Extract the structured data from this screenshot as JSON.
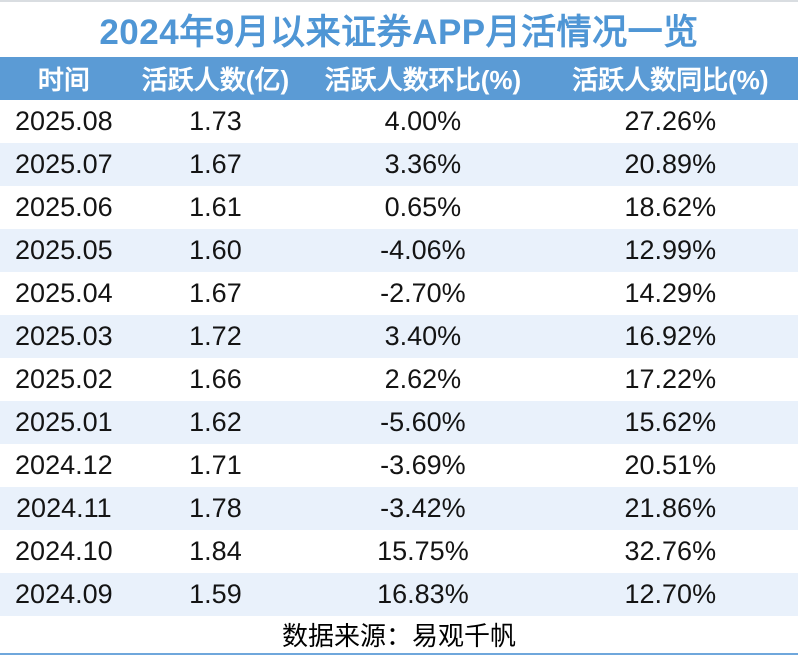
{
  "page": {
    "title": "2024年9月以来证券APP月活情况一览",
    "source_note": "数据来源：易观千帆"
  },
  "colors": {
    "title_text": "#4f96d5",
    "header_bg": "#5b9bd5",
    "header_text": "#ffffff",
    "row_alt_bg": "#e9f1fb",
    "body_text": "#141414",
    "accent_line": "#6fa7dc"
  },
  "table": {
    "headers": [
      "时间",
      "活跃人数(亿)",
      "活跃人数环比(%)",
      "活跃人数同比(%)"
    ],
    "rows": [
      {
        "date": "2025.08",
        "mau": "1.73",
        "mom": "4.00%",
        "yoy": "27.26%"
      },
      {
        "date": "2025.07",
        "mau": "1.67",
        "mom": "3.36%",
        "yoy": "20.89%"
      },
      {
        "date": "2025.06",
        "mau": "1.61",
        "mom": "0.65%",
        "yoy": "18.62%"
      },
      {
        "date": "2025.05",
        "mau": "1.60",
        "mom": "-4.06%",
        "yoy": "12.99%"
      },
      {
        "date": "2025.04",
        "mau": "1.67",
        "mom": "-2.70%",
        "yoy": "14.29%"
      },
      {
        "date": "2025.03",
        "mau": "1.72",
        "mom": "3.40%",
        "yoy": "16.92%"
      },
      {
        "date": "2025.02",
        "mau": "1.66",
        "mom": "2.62%",
        "yoy": "17.22%"
      },
      {
        "date": "2025.01",
        "mau": "1.62",
        "mom": "-5.60%",
        "yoy": "15.62%"
      },
      {
        "date": "2024.12",
        "mau": "1.71",
        "mom": "-3.69%",
        "yoy": "20.51%"
      },
      {
        "date": "2024.11",
        "mau": "1.78",
        "mom": "-3.42%",
        "yoy": "21.86%"
      },
      {
        "date": "2024.10",
        "mau": "1.84",
        "mom": "15.75%",
        "yoy": "32.76%"
      },
      {
        "date": "2024.09",
        "mau": "1.59",
        "mom": "16.83%",
        "yoy": "12.70%"
      }
    ]
  },
  "chart_data": {
    "type": "table",
    "title": "2024年9月以来证券APP月活情况一览",
    "columns": [
      "时间",
      "活跃人数(亿)",
      "活跃人数环比(%)",
      "活跃人数同比(%)"
    ],
    "rows": [
      [
        "2025.08",
        1.73,
        4.0,
        27.26
      ],
      [
        "2025.07",
        1.67,
        3.36,
        20.89
      ],
      [
        "2025.06",
        1.61,
        0.65,
        18.62
      ],
      [
        "2025.05",
        1.6,
        -4.06,
        12.99
      ],
      [
        "2025.04",
        1.67,
        -2.7,
        14.29
      ],
      [
        "2025.03",
        1.72,
        3.4,
        16.92
      ],
      [
        "2025.02",
        1.66,
        2.62,
        17.22
      ],
      [
        "2025.01",
        1.62,
        -5.6,
        15.62
      ],
      [
        "2024.12",
        1.71,
        -3.69,
        20.51
      ],
      [
        "2024.11",
        1.78,
        -3.42,
        21.86
      ],
      [
        "2024.10",
        1.84,
        15.75,
        32.76
      ],
      [
        "2024.09",
        1.59,
        16.83,
        12.7
      ]
    ],
    "units": {
      "活跃人数": "亿",
      "环比": "%",
      "同比": "%"
    },
    "source": "数据来源：易观千帆"
  }
}
